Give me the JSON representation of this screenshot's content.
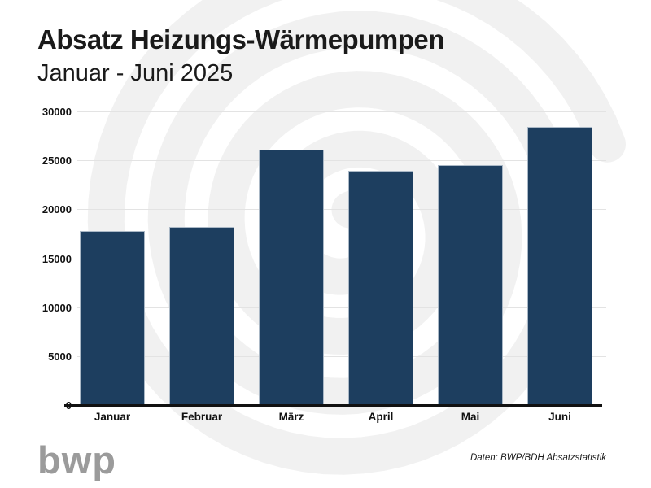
{
  "header": {
    "title": "Absatz Heizungs-Wärmepumpen",
    "subtitle": "Januar - Juni 2025"
  },
  "chart_data": {
    "type": "bar",
    "categories": [
      "Januar",
      "Februar",
      "März",
      "April",
      "Mai",
      "Juni"
    ],
    "values": [
      17900,
      18300,
      26200,
      24000,
      24600,
      28500
    ],
    "title": "Absatz Heizungs-Wärmepumpen",
    "subtitle": "Januar - Juni 2025",
    "xlabel": "",
    "ylabel": "",
    "ylim": [
      0,
      30000
    ],
    "yticks": [
      0,
      5000,
      10000,
      15000,
      20000,
      25000,
      30000
    ],
    "grid": true,
    "legend": false,
    "bar_color": "#1d3e5f"
  },
  "footer": {
    "logo_text": "bwp",
    "source": "Daten: BWP/BDH Absatzstatistik"
  },
  "colors": {
    "bar": "#1d3e5f",
    "bar_edge": "#aab8c6",
    "gridline": "#e3e3e3",
    "axis": "#111111",
    "watermark": "#f1f1f1",
    "logo": "#9b9b9b",
    "text": "#1a1a1a"
  }
}
